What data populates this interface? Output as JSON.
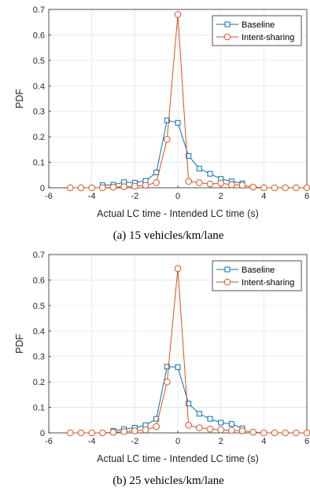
{
  "chart_data": [
    {
      "type": "line",
      "caption": "(a) 15 vehicles/km/lane",
      "xlabel": "Actual LC time - Intended LC time (s)",
      "ylabel": "PDF",
      "xlim": [
        -6,
        6
      ],
      "ylim": [
        0,
        0.7
      ],
      "xticks": [
        "-6",
        "-4",
        "-2",
        "0",
        "2",
        "4",
        "6"
      ],
      "yticks": [
        "0",
        "0.1",
        "0.2",
        "0.3",
        "0.4",
        "0.5",
        "0.6",
        "0.7"
      ],
      "grid": true,
      "legend": "top-right",
      "series": [
        {
          "name": "Baseline",
          "color": "#0072BD",
          "marker": "square",
          "x": [
            -3.5,
            -3.0,
            -2.5,
            -2.0,
            -1.5,
            -1.0,
            -0.5,
            0.0,
            0.5,
            1.0,
            1.5,
            2.0,
            2.5,
            3.0
          ],
          "y": [
            0.01,
            0.012,
            0.022,
            0.02,
            0.027,
            0.06,
            0.265,
            0.255,
            0.125,
            0.075,
            0.055,
            0.035,
            0.025,
            0.017
          ]
        },
        {
          "name": "Intent-sharing",
          "color": "#D95319",
          "marker": "circle",
          "x": [
            -5.0,
            -4.5,
            -4.0,
            -3.5,
            -3.0,
            -2.5,
            -2.0,
            -1.5,
            -1.0,
            -0.5,
            0.0,
            0.5,
            1.0,
            1.5,
            2.0,
            2.5,
            3.0,
            3.5,
            4.0,
            4.5,
            5.0,
            5.5,
            6.0
          ],
          "y": [
            0.0,
            0.0,
            0.0,
            0.0,
            0.002,
            0.004,
            0.006,
            0.01,
            0.02,
            0.19,
            0.68,
            0.025,
            0.02,
            0.015,
            0.018,
            0.012,
            0.01,
            0.003,
            0.0,
            0.0,
            0.0,
            0.0,
            0.0
          ]
        }
      ]
    },
    {
      "type": "line",
      "caption": "(b) 25 vehicles/km/lane",
      "xlabel": "Actual LC time - Intended LC time (s)",
      "ylabel": "PDF",
      "xlim": [
        -6,
        6
      ],
      "ylim": [
        0,
        0.7
      ],
      "xticks": [
        "-6",
        "-4",
        "-2",
        "0",
        "2",
        "4",
        "6"
      ],
      "yticks": [
        "0",
        "0.1",
        "0.2",
        "0.3",
        "0.4",
        "0.5",
        "0.6",
        "0.7"
      ],
      "grid": true,
      "legend": "top-right",
      "series": [
        {
          "name": "Baseline",
          "color": "#0072BD",
          "marker": "square",
          "x": [
            -3.0,
            -2.5,
            -2.0,
            -1.5,
            -1.0,
            -0.5,
            0.0,
            0.5,
            1.0,
            1.5,
            2.0,
            2.5,
            3.0
          ],
          "y": [
            0.008,
            0.015,
            0.02,
            0.03,
            0.055,
            0.26,
            0.258,
            0.115,
            0.075,
            0.055,
            0.04,
            0.035,
            0.018
          ]
        },
        {
          "name": "Intent-sharing",
          "color": "#D95319",
          "marker": "circle",
          "x": [
            -5.0,
            -4.5,
            -4.0,
            -3.5,
            -3.0,
            -2.5,
            -2.0,
            -1.5,
            -1.0,
            -0.5,
            0.0,
            0.5,
            1.0,
            1.5,
            2.0,
            2.5,
            3.0,
            3.5,
            4.0,
            4.5,
            5.0,
            5.5,
            6.0
          ],
          "y": [
            0.0,
            0.0,
            0.0,
            0.0,
            0.002,
            0.005,
            0.008,
            0.012,
            0.025,
            0.2,
            0.645,
            0.03,
            0.02,
            0.015,
            0.012,
            0.01,
            0.008,
            0.003,
            0.0,
            0.0,
            0.0,
            0.0,
            0.0
          ]
        }
      ]
    }
  ]
}
